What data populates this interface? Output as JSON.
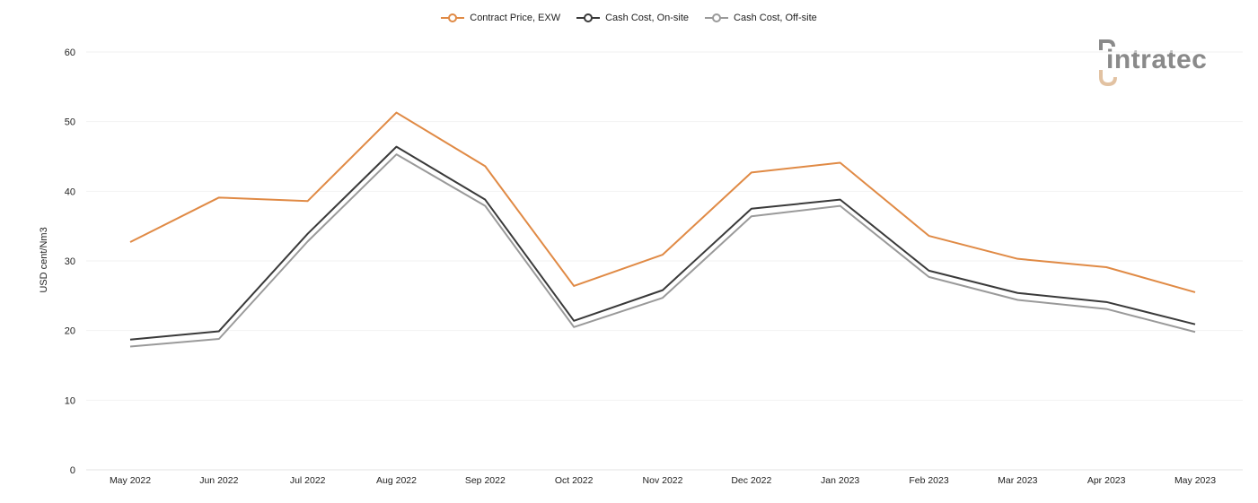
{
  "logo": {
    "text": "intratec",
    "color": "#8a8a8a",
    "accent": "#e2c2a2"
  },
  "chart_data": {
    "type": "line",
    "title": "",
    "xlabel": "",
    "ylabel": "USD cent/Nm3",
    "ylim": [
      0,
      60
    ],
    "yticks": [
      0,
      10,
      20,
      30,
      40,
      50,
      60
    ],
    "grid": true,
    "legend_position": "top-center",
    "categories": [
      "May 2022",
      "Jun 2022",
      "Jul 2022",
      "Aug 2022",
      "Sep 2022",
      "Oct 2022",
      "Nov 2022",
      "Dec 2022",
      "Jan 2023",
      "Feb 2023",
      "Mar 2023",
      "Apr 2023",
      "May 2023"
    ],
    "series": [
      {
        "name": "Contract Price, EXW",
        "color": "#e08a45",
        "values": [
          32.7,
          39.1,
          38.6,
          51.3,
          43.6,
          26.4,
          30.9,
          42.7,
          44.1,
          33.6,
          30.3,
          29.1,
          25.5
        ]
      },
      {
        "name": "Cash Cost, On-site",
        "color": "#3a3a3a",
        "values": [
          18.7,
          19.9,
          33.9,
          46.4,
          38.8,
          21.4,
          25.8,
          37.5,
          38.8,
          28.6,
          25.4,
          24.1,
          20.9
        ]
      },
      {
        "name": "Cash Cost, Off-site",
        "color": "#9a9a9a",
        "values": [
          17.7,
          18.8,
          32.8,
          45.3,
          37.9,
          20.5,
          24.7,
          36.4,
          37.9,
          27.7,
          24.4,
          23.1,
          19.8
        ]
      }
    ]
  }
}
